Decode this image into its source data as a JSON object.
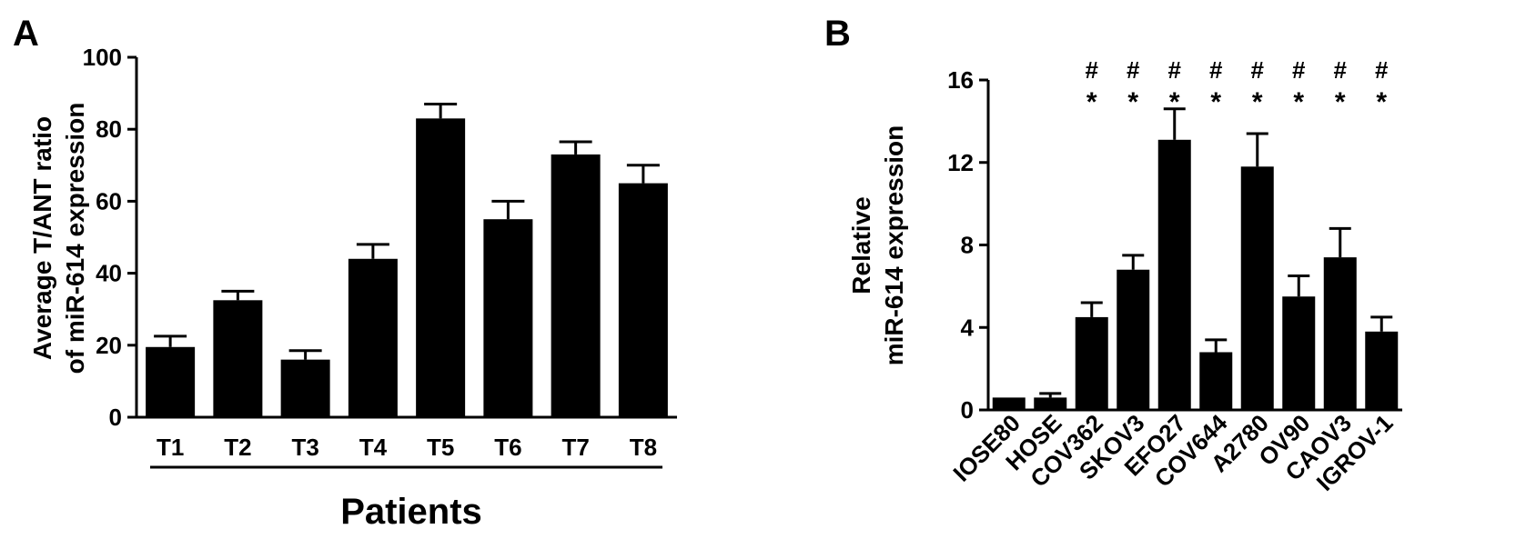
{
  "panels": {
    "a_label": "A",
    "b_label": "B"
  },
  "chart_data": [
    {
      "type": "bar",
      "panel": "A",
      "title": "",
      "ylabel_lines": [
        "Average T/ANT ratio",
        "of miR-614 expression"
      ],
      "xlabel": "Patients",
      "categories": [
        "T1",
        "T2",
        "T3",
        "T4",
        "T5",
        "T6",
        "T7",
        "T8"
      ],
      "values": [
        19.5,
        32.5,
        16,
        44,
        83,
        55,
        73,
        65
      ],
      "errors": [
        3,
        2.5,
        2.5,
        4,
        4,
        5,
        3.5,
        5
      ],
      "ylim": [
        0,
        100
      ],
      "yticks": [
        0,
        20,
        40,
        60,
        80,
        100
      ],
      "bar_color": "#000000",
      "grid": false
    },
    {
      "type": "bar",
      "panel": "B",
      "title": "",
      "ylabel_lines": [
        "Relative",
        "miR-614 expression"
      ],
      "xlabel": "",
      "categories": [
        "IOSE80",
        "HOSE",
        "COV362",
        "SKOV3",
        "EFO27",
        "COV644",
        "A2780",
        "OV90",
        "CAOV3",
        "IGROV-1"
      ],
      "values": [
        0.6,
        0.6,
        4.5,
        6.8,
        13.1,
        2.8,
        11.8,
        5.5,
        7.4,
        3.8
      ],
      "errors": [
        0,
        0.2,
        0.7,
        0.7,
        1.5,
        0.6,
        1.6,
        1.0,
        1.4,
        0.7
      ],
      "significance_hash": [
        "",
        "",
        "#",
        "#",
        "#",
        "#",
        "#",
        "#",
        "#",
        "#"
      ],
      "significance_star": [
        "",
        "",
        "*",
        "*",
        "*",
        "*",
        "*",
        "*",
        "*",
        "*"
      ],
      "ylim": [
        0,
        16
      ],
      "yticks": [
        0,
        4,
        8,
        12,
        16
      ],
      "bar_color": "#000000",
      "grid": false
    }
  ]
}
